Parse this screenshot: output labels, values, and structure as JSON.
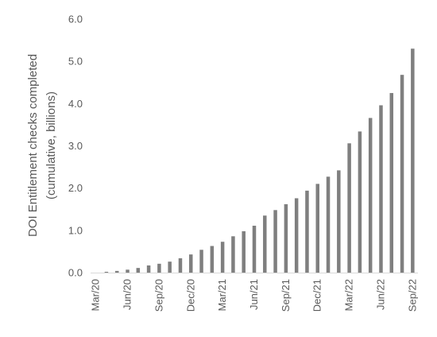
{
  "chart_data": {
    "type": "bar",
    "title": "",
    "xlabel": "",
    "ylabel_lines": [
      "DOI Entitlement checks completed",
      "(cumulative, billions)"
    ],
    "ylim": [
      0,
      6
    ],
    "y_ticks": [
      "0.0",
      "1.0",
      "2.0",
      "3.0",
      "4.0",
      "5.0",
      "6.0"
    ],
    "grid": false,
    "bar_color": "#7f7f7f",
    "categories": [
      "Mar/20",
      "Apr/20",
      "May/20",
      "Jun/20",
      "Jul/20",
      "Aug/20",
      "Sep/20",
      "Oct/20",
      "Nov/20",
      "Dec/20",
      "Jan/21",
      "Feb/21",
      "Mar/21",
      "Apr/21",
      "May/21",
      "Jun/21",
      "Jul/21",
      "Aug/21",
      "Sep/21",
      "Oct/21",
      "Nov/21",
      "Dec/21",
      "Jan/22",
      "Feb/22",
      "Mar/22",
      "Apr/22",
      "May/22",
      "Jun/22",
      "Jul/22",
      "Aug/22",
      "Sep/22"
    ],
    "x_tick_labels": [
      "Mar/20",
      "Jun/20",
      "Sep/20",
      "Dec/20",
      "Mar/21",
      "Jun/21",
      "Sep/21",
      "Dec/21",
      "Mar/22",
      "Jun/22",
      "Sep/22"
    ],
    "values": [
      0.0,
      0.02,
      0.04,
      0.07,
      0.11,
      0.17,
      0.21,
      0.26,
      0.34,
      0.43,
      0.54,
      0.63,
      0.73,
      0.86,
      0.98,
      1.11,
      1.35,
      1.48,
      1.62,
      1.76,
      1.94,
      2.1,
      2.27,
      2.42,
      3.06,
      3.34,
      3.66,
      3.96,
      4.25,
      4.68,
      5.3
    ]
  }
}
